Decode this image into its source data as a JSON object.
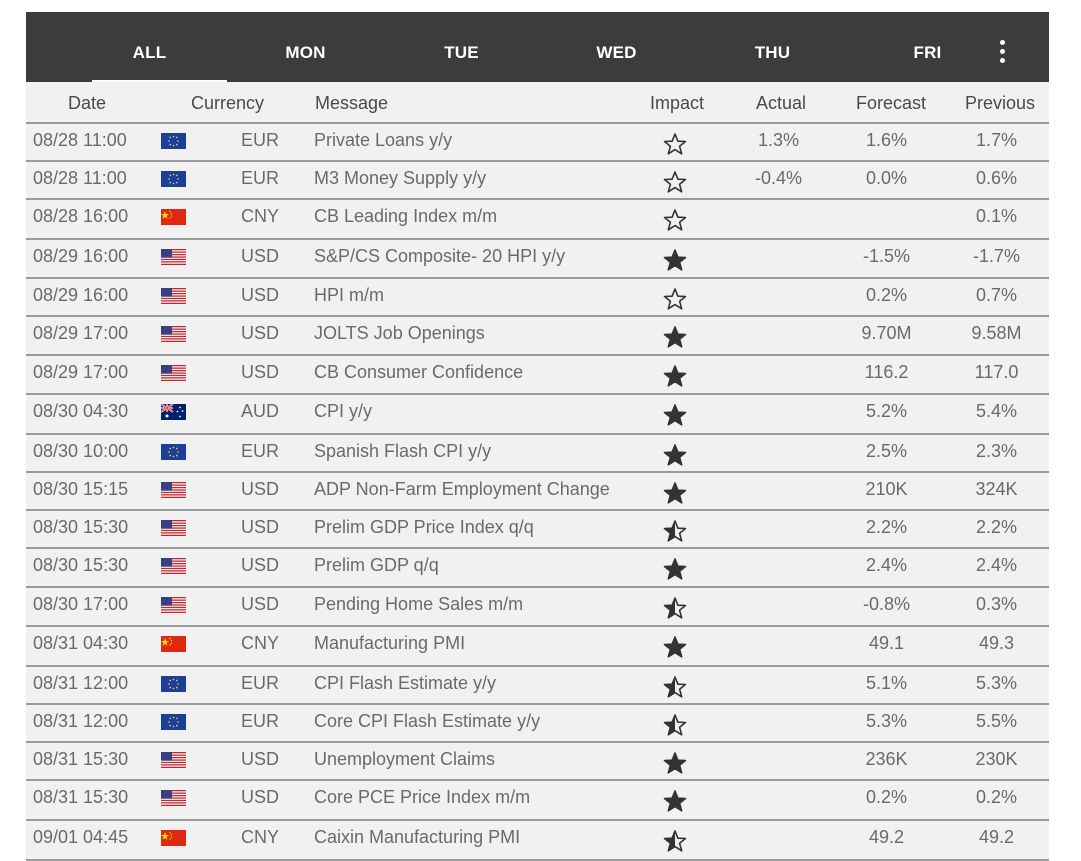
{
  "tabs": [
    {
      "label": "ALL",
      "active": true
    },
    {
      "label": "MON",
      "active": false
    },
    {
      "label": "TUE",
      "active": false
    },
    {
      "label": "WED",
      "active": false
    },
    {
      "label": "THU",
      "active": false
    },
    {
      "label": "FRI",
      "active": false
    }
  ],
  "menu_icon": "more-vertical-icon",
  "columns": {
    "date": "Date",
    "currency": "Currency",
    "message": "Message",
    "impact": "Impact",
    "actual": "Actual",
    "forecast": "Forecast",
    "previous": "Previous"
  },
  "colors": {
    "tab_bar": "#3c3c3c",
    "background": "#f1f1f1",
    "text": "#6a6a6a",
    "header_text": "#4a4a4a",
    "star": "#333333"
  },
  "rows": [
    {
      "date": "08/28 11:00",
      "flag": "eu-flag-icon",
      "currency": "EUR",
      "message": "Private Loans y/y",
      "impact": "low",
      "actual": "1.3%",
      "forecast": "1.6%",
      "previous": "1.7%"
    },
    {
      "date": "08/28 11:00",
      "flag": "eu-flag-icon",
      "currency": "EUR",
      "message": "M3 Money Supply y/y",
      "impact": "low",
      "actual": "-0.4%",
      "forecast": "0.0%",
      "previous": "0.6%"
    },
    {
      "date": "08/28 16:00",
      "flag": "cn-flag-icon",
      "currency": "CNY",
      "message": "CB Leading Index m/m",
      "impact": "low",
      "actual": "",
      "forecast": "",
      "previous": "0.1%"
    },
    {
      "date": "08/29 16:00",
      "flag": "us-flag-icon",
      "currency": "USD",
      "message": "S&P/CS Composite- 20 HPI y/y",
      "impact": "high",
      "actual": "",
      "forecast": "-1.5%",
      "previous": "-1.7%"
    },
    {
      "date": "08/29 16:00",
      "flag": "us-flag-icon",
      "currency": "USD",
      "message": "HPI m/m",
      "impact": "low",
      "actual": "",
      "forecast": "0.2%",
      "previous": "0.7%"
    },
    {
      "date": "08/29 17:00",
      "flag": "us-flag-icon",
      "currency": "USD",
      "message": "JOLTS Job Openings",
      "impact": "high",
      "actual": "",
      "forecast": "9.70M",
      "previous": "9.58M"
    },
    {
      "date": "08/29 17:00",
      "flag": "us-flag-icon",
      "currency": "USD",
      "message": "CB Consumer Confidence",
      "impact": "high",
      "actual": "",
      "forecast": "116.2",
      "previous": "117.0"
    },
    {
      "date": "08/30 04:30",
      "flag": "au-flag-icon",
      "currency": "AUD",
      "message": "CPI y/y",
      "impact": "high",
      "actual": "",
      "forecast": "5.2%",
      "previous": "5.4%"
    },
    {
      "date": "08/30 10:00",
      "flag": "eu-flag-icon",
      "currency": "EUR",
      "message": "Spanish Flash CPI y/y",
      "impact": "high",
      "actual": "",
      "forecast": "2.5%",
      "previous": "2.3%"
    },
    {
      "date": "08/30 15:15",
      "flag": "us-flag-icon",
      "currency": "USD",
      "message": "ADP Non-Farm Employment Change",
      "impact": "high",
      "actual": "",
      "forecast": "210K",
      "previous": "324K"
    },
    {
      "date": "08/30 15:30",
      "flag": "us-flag-icon",
      "currency": "USD",
      "message": "Prelim GDP Price Index q/q",
      "impact": "medium",
      "actual": "",
      "forecast": "2.2%",
      "previous": "2.2%"
    },
    {
      "date": "08/30 15:30",
      "flag": "us-flag-icon",
      "currency": "USD",
      "message": "Prelim GDP q/q",
      "impact": "high",
      "actual": "",
      "forecast": "2.4%",
      "previous": "2.4%"
    },
    {
      "date": "08/30 17:00",
      "flag": "us-flag-icon",
      "currency": "USD",
      "message": "Pending Home Sales m/m",
      "impact": "medium",
      "actual": "",
      "forecast": "-0.8%",
      "previous": "0.3%"
    },
    {
      "date": "08/31 04:30",
      "flag": "cn-flag-icon",
      "currency": "CNY",
      "message": "Manufacturing PMI",
      "impact": "high",
      "actual": "",
      "forecast": "49.1",
      "previous": "49.3"
    },
    {
      "date": "08/31 12:00",
      "flag": "eu-flag-icon",
      "currency": "EUR",
      "message": "CPI Flash Estimate y/y",
      "impact": "medium",
      "actual": "",
      "forecast": "5.1%",
      "previous": "5.3%"
    },
    {
      "date": "08/31 12:00",
      "flag": "eu-flag-icon",
      "currency": "EUR",
      "message": "Core CPI Flash Estimate y/y",
      "impact": "medium",
      "actual": "",
      "forecast": "5.3%",
      "previous": "5.5%"
    },
    {
      "date": "08/31 15:30",
      "flag": "us-flag-icon",
      "currency": "USD",
      "message": "Unemployment Claims",
      "impact": "high",
      "actual": "",
      "forecast": "236K",
      "previous": "230K"
    },
    {
      "date": "08/31 15:30",
      "flag": "us-flag-icon",
      "currency": "USD",
      "message": "Core PCE Price Index m/m",
      "impact": "high",
      "actual": "",
      "forecast": "0.2%",
      "previous": "0.2%"
    },
    {
      "date": "09/01 04:45",
      "flag": "cn-flag-icon",
      "currency": "CNY",
      "message": "Caixin Manufacturing PMI",
      "impact": "medium",
      "actual": "",
      "forecast": "49.2",
      "previous": "49.2"
    }
  ]
}
